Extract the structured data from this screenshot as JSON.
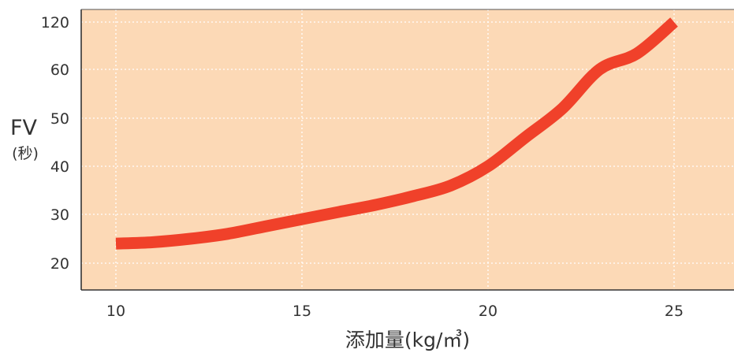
{
  "chart_data": {
    "type": "line",
    "xlabel": "添加量(kg/㎥)",
    "ylabel": "FV",
    "ylabel_unit": "(秒)",
    "x_ticks": [
      10,
      15,
      20,
      25
    ],
    "y_ticks": [
      20,
      30,
      40,
      50,
      60,
      120
    ],
    "xlim": [
      10,
      26.5
    ],
    "y_scale": "categorical-uneven",
    "grid": true,
    "grid_style": "dotted-white",
    "plot_background": "#fcd9b6",
    "series": [
      {
        "color": "#f0412a",
        "points": [
          {
            "x": 10,
            "y": 24
          },
          {
            "x": 11,
            "y": 24.3
          },
          {
            "x": 12,
            "y": 25
          },
          {
            "x": 13,
            "y": 26
          },
          {
            "x": 14,
            "y": 27.5
          },
          {
            "x": 15,
            "y": 29
          },
          {
            "x": 16,
            "y": 30.5
          },
          {
            "x": 17,
            "y": 32
          },
          {
            "x": 18,
            "y": 33.8
          },
          {
            "x": 19,
            "y": 36
          },
          {
            "x": 20,
            "y": 40
          },
          {
            "x": 21,
            "y": 46
          },
          {
            "x": 22,
            "y": 52
          },
          {
            "x": 23,
            "y": 60
          },
          {
            "x": 24,
            "y": 80
          },
          {
            "x": 25,
            "y": 120
          }
        ]
      }
    ]
  }
}
